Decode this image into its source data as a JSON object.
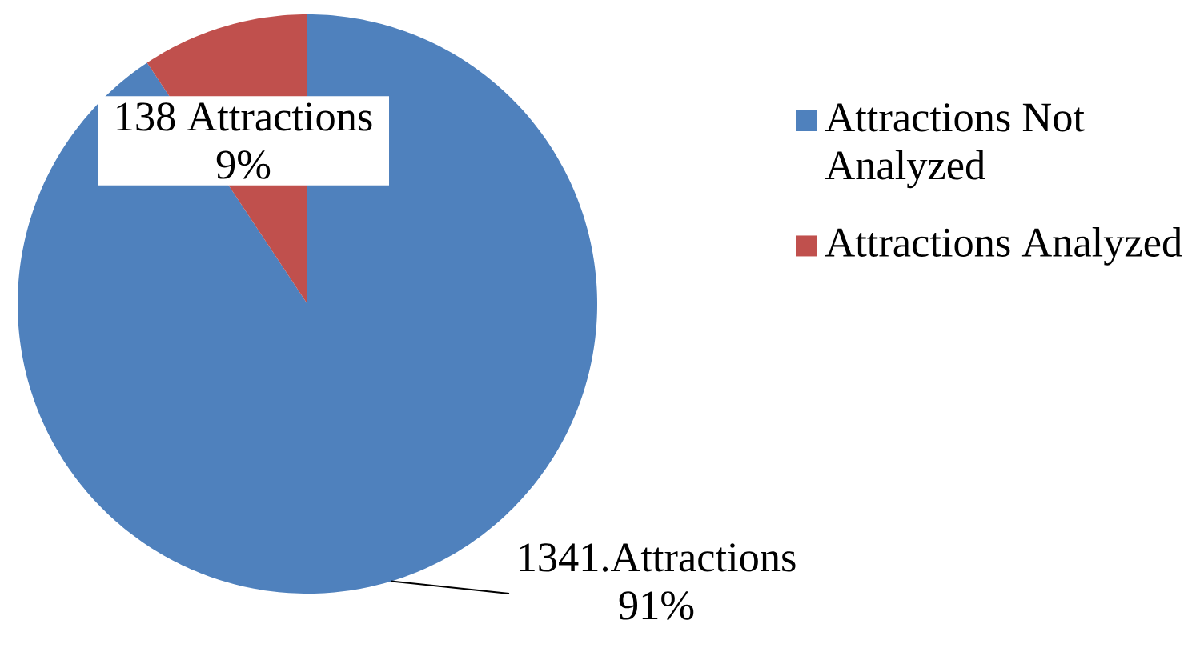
{
  "chart_data": {
    "type": "pie",
    "categories": [
      "Attractions Not Analyzed",
      "Attractions Analyzed"
    ],
    "values": [
      1341,
      138
    ],
    "colors": [
      "#4f81bd",
      "#c0504d"
    ],
    "value_labels": [
      "1341.Attractions 91%",
      "138 Attractions 9%"
    ],
    "legend": "right"
  }
}
